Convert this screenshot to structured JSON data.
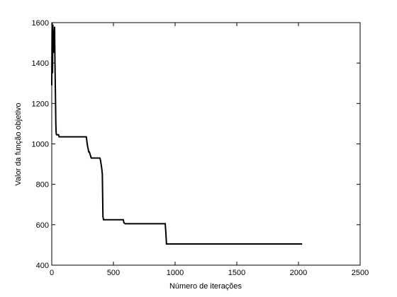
{
  "chart_data": {
    "type": "line",
    "xlabel": "Número de iterações",
    "ylabel": "Valor da função objetivo",
    "xlim": [
      0,
      2500
    ],
    "ylim": [
      400,
      1600
    ],
    "xticks": [
      0,
      500,
      1000,
      1500,
      2000,
      2500
    ],
    "yticks": [
      400,
      600,
      800,
      1000,
      1200,
      1400,
      1600
    ],
    "grid": false,
    "series": [
      {
        "color": "#000000",
        "x": [
          0,
          3,
          6,
          9,
          13,
          16,
          20,
          23,
          26,
          30,
          33,
          36,
          40,
          45,
          50,
          55,
          60,
          70,
          280,
          290,
          300,
          305,
          315,
          320,
          330,
          390,
          395,
          400,
          405,
          410,
          415,
          420,
          580,
          585,
          595,
          920,
          925,
          930,
          2030
        ],
        "y": [
          1290,
          1600,
          1350,
          1590,
          1450,
          1560,
          1500,
          1580,
          1400,
          1240,
          1100,
          1050,
          1045,
          1045,
          1045,
          1045,
          1035,
          1035,
          1035,
          990,
          960,
          960,
          940,
          930,
          930,
          930,
          920,
          900,
          880,
          850,
          640,
          625,
          625,
          610,
          605,
          605,
          560,
          505,
          505
        ]
      }
    ]
  }
}
